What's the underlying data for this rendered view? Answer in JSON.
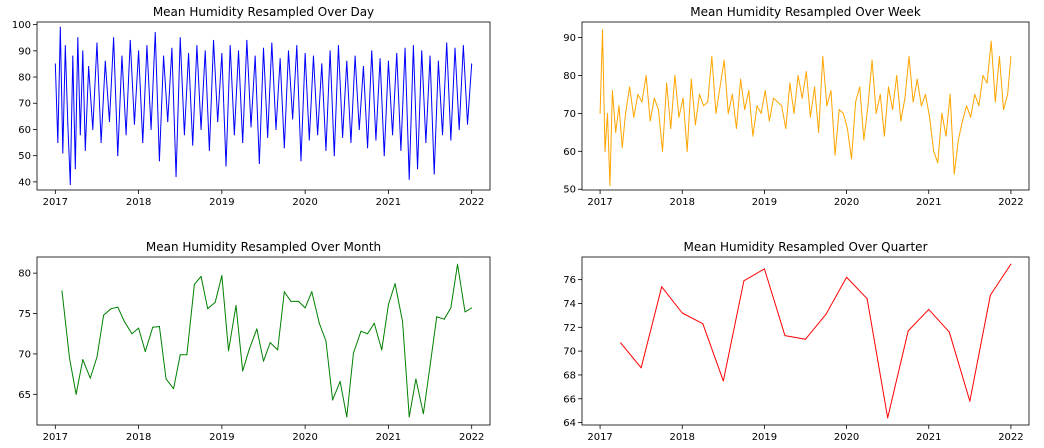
{
  "chart_data": [
    {
      "type": "line",
      "title": "Mean Humidity Resampled Over Day",
      "color": "#0000ff",
      "xlabel": "",
      "ylabel": "",
      "xlim": [
        2016.78,
        2022.22
      ],
      "ylim": [
        36.9,
        101
      ],
      "xticks": [
        "2017",
        "2018",
        "2019",
        "2020",
        "2021",
        "2022"
      ],
      "yticks": [
        40,
        50,
        60,
        70,
        80,
        90,
        100
      ],
      "series": [
        {
          "x": [
            2017.0,
            2017.03,
            2017.06,
            2017.09,
            2017.12,
            2017.15,
            2017.18,
            2017.21,
            2017.24,
            2017.27,
            2017.3,
            2017.33,
            2017.36,
            2017.4,
            2017.45,
            2017.5,
            2017.55,
            2017.6,
            2017.65,
            2017.7,
            2017.75,
            2017.8,
            2017.85,
            2017.9,
            2017.95,
            2018.0,
            2018.05,
            2018.1,
            2018.15,
            2018.2,
            2018.25,
            2018.3,
            2018.35,
            2018.4,
            2018.45,
            2018.5,
            2018.55,
            2018.6,
            2018.65,
            2018.7,
            2018.75,
            2018.8,
            2018.85,
            2018.9,
            2018.95,
            2019.0,
            2019.05,
            2019.1,
            2019.15,
            2019.2,
            2019.25,
            2019.3,
            2019.35,
            2019.4,
            2019.45,
            2019.5,
            2019.55,
            2019.6,
            2019.65,
            2019.7,
            2019.75,
            2019.8,
            2019.85,
            2019.9,
            2019.95,
            2020.0,
            2020.05,
            2020.1,
            2020.15,
            2020.2,
            2020.25,
            2020.3,
            2020.35,
            2020.4,
            2020.45,
            2020.5,
            2020.55,
            2020.6,
            2020.65,
            2020.7,
            2020.75,
            2020.8,
            2020.85,
            2020.9,
            2020.95,
            2021.0,
            2021.05,
            2021.1,
            2021.15,
            2021.2,
            2021.25,
            2021.3,
            2021.35,
            2021.4,
            2021.45,
            2021.5,
            2021.55,
            2021.6,
            2021.65,
            2021.7,
            2021.75,
            2021.8,
            2021.85,
            2021.9,
            2021.95,
            2022.0
          ],
          "values": [
            85,
            55,
            99,
            51,
            92,
            62,
            39,
            88,
            45,
            95,
            58,
            90,
            52,
            84,
            60,
            93,
            55,
            86,
            63,
            95,
            50,
            88,
            58,
            94,
            62,
            90,
            55,
            92,
            60,
            97,
            48,
            88,
            63,
            91,
            42,
            95,
            58,
            89,
            54,
            92,
            60,
            90,
            52,
            94,
            63,
            89,
            46,
            92,
            58,
            90,
            55,
            94,
            61,
            88,
            47,
            91,
            57,
            93,
            60,
            87,
            53,
            90,
            64,
            92,
            48,
            89,
            56,
            88,
            58,
            85,
            52,
            90,
            50,
            92,
            57,
            86,
            55,
            88,
            60,
            84,
            53,
            90,
            56,
            87,
            50,
            86,
            58,
            89,
            52,
            91,
            41,
            92,
            45,
            90,
            55,
            88,
            43,
            86,
            58,
            93,
            56,
            91,
            60,
            92,
            62,
            85
          ]
        }
      ]
    },
    {
      "type": "line",
      "title": "Mean Humidity Resampled Over Week",
      "color": "#ffa500",
      "xlabel": "",
      "ylabel": "",
      "xlim": [
        2016.78,
        2022.22
      ],
      "ylim": [
        49.8,
        94.1
      ],
      "xticks": [
        "2017",
        "2018",
        "2019",
        "2020",
        "2021",
        "2022"
      ],
      "yticks": [
        50,
        60,
        70,
        80,
        90
      ],
      "series": [
        {
          "x": [
            2017.0,
            2017.03,
            2017.06,
            2017.09,
            2017.12,
            2017.15,
            2017.19,
            2017.23,
            2017.27,
            2017.31,
            2017.36,
            2017.41,
            2017.46,
            2017.51,
            2017.56,
            2017.61,
            2017.66,
            2017.71,
            2017.76,
            2017.81,
            2017.86,
            2017.91,
            2017.96,
            2018.01,
            2018.06,
            2018.11,
            2018.16,
            2018.21,
            2018.26,
            2018.31,
            2018.36,
            2018.41,
            2018.46,
            2018.51,
            2018.56,
            2018.61,
            2018.66,
            2018.71,
            2018.76,
            2018.81,
            2018.86,
            2018.91,
            2018.96,
            2019.01,
            2019.06,
            2019.11,
            2019.16,
            2019.21,
            2019.26,
            2019.31,
            2019.36,
            2019.41,
            2019.46,
            2019.51,
            2019.56,
            2019.61,
            2019.66,
            2019.71,
            2019.76,
            2019.81,
            2019.86,
            2019.91,
            2019.96,
            2020.01,
            2020.06,
            2020.11,
            2020.16,
            2020.21,
            2020.26,
            2020.31,
            2020.36,
            2020.41,
            2020.46,
            2020.51,
            2020.56,
            2020.61,
            2020.66,
            2020.71,
            2020.76,
            2020.81,
            2020.86,
            2020.91,
            2020.96,
            2021.01,
            2021.06,
            2021.11,
            2021.16,
            2021.21,
            2021.26,
            2021.31,
            2021.36,
            2021.41,
            2021.46,
            2021.51,
            2021.56,
            2021.61,
            2021.66,
            2021.71,
            2021.76,
            2021.81,
            2021.86,
            2021.91,
            2021.96,
            2022.0
          ],
          "values": [
            70,
            92,
            60,
            70,
            51,
            76,
            65,
            72,
            61,
            70,
            77,
            69,
            75,
            73,
            80,
            68,
            74,
            71,
            60,
            78,
            66,
            80,
            69,
            74,
            60,
            79,
            67,
            75,
            72,
            73,
            85,
            70,
            77,
            84,
            70,
            75,
            66,
            79,
            71,
            76,
            64,
            72,
            70,
            76,
            68,
            74,
            73,
            72,
            66,
            78,
            70,
            80,
            74,
            81,
            69,
            77,
            65,
            85,
            72,
            76,
            59,
            71,
            70,
            66,
            58,
            73,
            77,
            63,
            72,
            84,
            70,
            75,
            64,
            77,
            71,
            80,
            68,
            74,
            85,
            73,
            79,
            72,
            75,
            69,
            60,
            57,
            70,
            64,
            75,
            54,
            63,
            68,
            72,
            69,
            75,
            72,
            80,
            78,
            89,
            73,
            85,
            71,
            75,
            85
          ]
        }
      ]
    },
    {
      "type": "line",
      "title": "Mean Humidity Resampled Over Month",
      "color": "#008000",
      "xlabel": "",
      "ylabel": "",
      "xlim": [
        2016.78,
        2022.22
      ],
      "ylim": [
        61.2,
        82.0
      ],
      "xticks": [
        "2017",
        "2018",
        "2019",
        "2020",
        "2021",
        "2022"
      ],
      "yticks": [
        65,
        70,
        75,
        80
      ],
      "series": [
        {
          "x": [
            2017.08,
            2017.17,
            2017.25,
            2017.33,
            2017.42,
            2017.5,
            2017.58,
            2017.67,
            2017.75,
            2017.83,
            2017.92,
            2018.0,
            2018.08,
            2018.17,
            2018.25,
            2018.33,
            2018.42,
            2018.5,
            2018.58,
            2018.67,
            2018.75,
            2018.83,
            2018.92,
            2019.0,
            2019.08,
            2019.17,
            2019.25,
            2019.33,
            2019.42,
            2019.5,
            2019.58,
            2019.67,
            2019.75,
            2019.83,
            2019.92,
            2020.0,
            2020.08,
            2020.17,
            2020.25,
            2020.33,
            2020.42,
            2020.5,
            2020.58,
            2020.67,
            2020.75,
            2020.83,
            2020.92,
            2021.0,
            2021.08,
            2021.17,
            2021.25,
            2021.33,
            2021.42,
            2021.5,
            2021.58,
            2021.67,
            2021.75,
            2021.83,
            2021.92,
            2022.0
          ],
          "values": [
            77.8,
            69.5,
            65.0,
            69.3,
            67.0,
            69.6,
            74.8,
            75.6,
            75.8,
            74.0,
            72.5,
            73.2,
            70.3,
            73.3,
            73.4,
            66.9,
            65.7,
            69.9,
            69.9,
            78.6,
            79.6,
            75.6,
            76.4,
            79.7,
            70.4,
            76.0,
            67.9,
            70.6,
            73.1,
            69.1,
            71.4,
            70.5,
            77.7,
            76.5,
            76.5,
            75.7,
            77.7,
            73.8,
            71.6,
            64.3,
            66.6,
            62.2,
            70.1,
            72.8,
            72.5,
            73.8,
            70.5,
            76.1,
            78.7,
            74.0,
            62.2,
            66.9,
            62.6,
            68.5,
            74.6,
            74.3,
            75.7,
            81.1,
            75.2,
            75.7
          ]
        }
      ]
    },
    {
      "type": "line",
      "title": "Mean Humidity Resampled Over Quarter",
      "color": "#ff0000",
      "xlabel": "",
      "ylabel": "",
      "xlim": [
        2016.78,
        2022.22
      ],
      "ylim": [
        63.8,
        77.9
      ],
      "xticks": [
        "2017",
        "2018",
        "2019",
        "2020",
        "2021",
        "2022"
      ],
      "yticks": [
        64,
        66,
        68,
        70,
        72,
        74,
        76
      ],
      "series": [
        {
          "x": [
            2017.25,
            2017.5,
            2017.75,
            2018.0,
            2018.25,
            2018.5,
            2018.75,
            2019.0,
            2019.25,
            2019.5,
            2019.75,
            2020.0,
            2020.25,
            2020.5,
            2020.75,
            2021.0,
            2021.25,
            2021.5,
            2021.75,
            2022.0
          ],
          "values": [
            70.7,
            68.6,
            75.4,
            73.2,
            72.3,
            67.5,
            75.9,
            76.9,
            71.3,
            71.0,
            73.1,
            76.2,
            74.4,
            64.4,
            71.7,
            73.5,
            71.6,
            65.8,
            74.7,
            77.3
          ]
        }
      ]
    }
  ]
}
